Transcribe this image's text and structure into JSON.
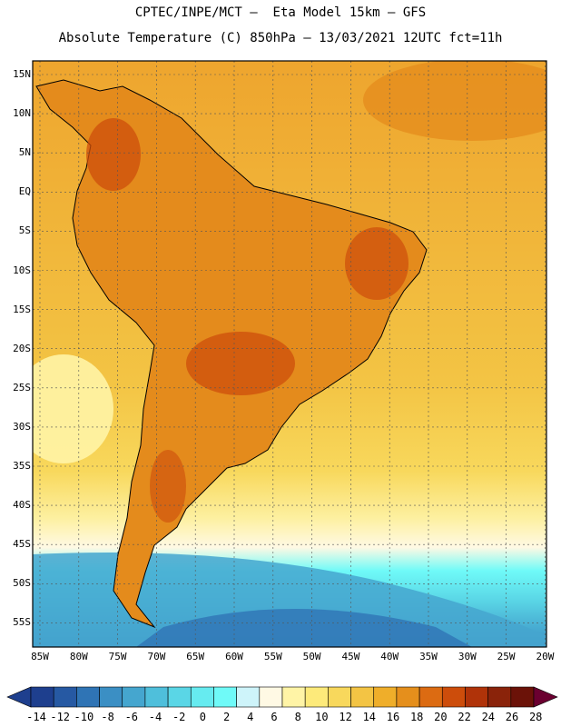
{
  "header": {
    "line1": "CPTEC/INPE/MCT –  Eta Model 15km – GFS",
    "line2": "Absolute Temperature (C) 850hPa – 13/03/2021 12UTC fct=11h"
  },
  "map": {
    "region": "South America",
    "lat_labels": [
      "15N",
      "10N",
      "5N",
      "EQ",
      "5S",
      "10S",
      "15S",
      "20S",
      "25S",
      "30S",
      "35S",
      "40S",
      "45S",
      "50S",
      "55S"
    ],
    "lon_labels": [
      "85W",
      "80W",
      "75W",
      "70W",
      "65W",
      "60W",
      "55W",
      "50W",
      "45W",
      "40W",
      "35W",
      "30W",
      "25W",
      "20W"
    ],
    "ocean_color": "#f0b33a",
    "land_color": "#e48b1c"
  },
  "colorbar": {
    "labels": [
      "-14",
      "-12",
      "-10",
      "-8",
      "-6",
      "-4",
      "-2",
      "0",
      "2",
      "4",
      "6",
      "8",
      "10",
      "12",
      "14",
      "16",
      "18",
      "20",
      "22",
      "24",
      "26",
      "28"
    ],
    "colors": [
      "#1e3f8e",
      "#2659a3",
      "#2f74b5",
      "#3b8fc4",
      "#45a6cf",
      "#4fbfdb",
      "#5ad6e6",
      "#66ebf0",
      "#6ffaf8",
      "#cef4fa",
      "#fff9e4",
      "#fff4a6",
      "#fdea7a",
      "#f8d85c",
      "#f3c444",
      "#efae2a",
      "#e58f1c",
      "#dc6b12",
      "#cd4d0b",
      "#b03309",
      "#8a230a",
      "#6b1208"
    ],
    "unit": "C"
  }
}
